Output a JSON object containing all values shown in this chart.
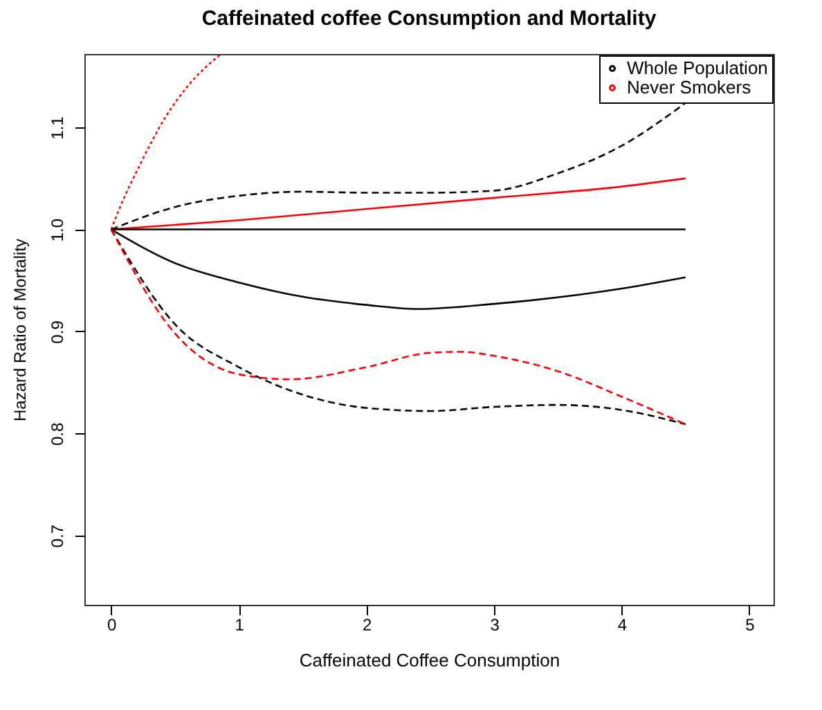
{
  "chart_data": {
    "type": "line",
    "title": "Caffeinated coffee Consumption and Mortality",
    "xlabel": "Caffeinated Coffee Consumption",
    "ylabel": "Hazard Ratio of Mortality",
    "xlim": [
      -0.21,
      5.19
    ],
    "xticks": [
      0,
      1,
      2,
      3,
      4,
      5
    ],
    "ylim": [
      0.632,
      1.172
    ],
    "yticks": [
      0.7,
      0.8,
      0.9,
      {
        "value": 1,
        "label": "1.0"
      },
      1.1
    ],
    "grid": false,
    "legend": "top right",
    "series": [
      {
        "name": "Whole Population",
        "color": "#000000",
        "line_style": "solid",
        "x": [
          0,
          0.5,
          1,
          1.5,
          2,
          2.4,
          3,
          4,
          4.5
        ],
        "values": [
          1.0,
          0.967,
          0.948,
          0.934,
          0.926,
          0.922,
          0.927,
          0.942,
          0.953
        ]
      },
      {
        "color": "#000000",
        "line_style": "dashed",
        "x": [
          0,
          0.5,
          1,
          1.5,
          2,
          2.5,
          3,
          3.5,
          4,
          4.5
        ],
        "values": [
          1.0,
          1.022,
          1.033,
          1.037,
          1.036,
          1.036,
          1.038,
          1.055,
          1.082,
          1.124
        ]
      },
      {
        "color": "#000000",
        "line_style": "dashed",
        "x": [
          0,
          0.5,
          1,
          1.5,
          2,
          2.5,
          3,
          3.5,
          4,
          4.5
        ],
        "values": [
          1.0,
          0.907,
          0.865,
          0.838,
          0.825,
          0.822,
          0.826,
          0.828,
          0.823,
          0.809
        ]
      },
      {
        "name": "Never Smokers",
        "color": "#ff0000",
        "line_style": "solid",
        "x": [
          0,
          1,
          2,
          3,
          4,
          4.5
        ],
        "values": [
          1.0,
          1.009,
          1.02,
          1.031,
          1.042,
          1.05
        ]
      },
      {
        "color": "#ff0000",
        "line_style": "dotted",
        "x": [
          0,
          0.07,
          0.22,
          0.43,
          0.61,
          0.86
        ],
        "values": [
          1.0,
          1.022,
          1.062,
          1.111,
          1.142,
          1.172
        ]
      },
      {
        "color": "#ff0000",
        "line_style": "dashed",
        "x": [
          0,
          0.5,
          1,
          1.4,
          2,
          2.5,
          2.75,
          3,
          3.5,
          4,
          4.5
        ],
        "values": [
          1.0,
          0.898,
          0.858,
          0.853,
          0.865,
          0.879,
          0.88,
          0.876,
          0.861,
          0.836,
          0.809
        ]
      },
      {
        "color": "#000000",
        "line_style": "solid",
        "x": [
          0,
          4.5
        ],
        "values": [
          1.0,
          1.0
        ]
      }
    ]
  }
}
